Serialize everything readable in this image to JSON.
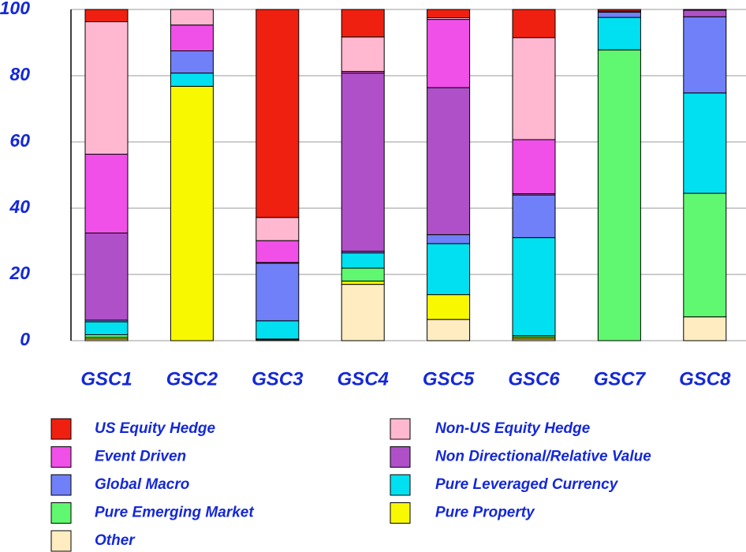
{
  "chart_data": {
    "type": "stacked_bar",
    "categories": [
      "GSC1",
      "GSC2",
      "GSC3",
      "GSC4",
      "GSC5",
      "GSC6",
      "GSC7",
      "GSC8"
    ],
    "series": [
      {
        "name": "US Equity Hedge",
        "color": "#f02010",
        "values": [
          3.7,
          0,
          62.8,
          8.3,
          2.5,
          8.5,
          0.5,
          0.2
        ]
      },
      {
        "name": "Non-US Equity Hedge",
        "color": "#ffb8d0",
        "values": [
          40,
          4.7,
          7,
          10.4,
          0.5,
          30.8,
          0.3,
          0
        ]
      },
      {
        "name": "Event Driven",
        "color": "#f050e8",
        "values": [
          23.8,
          7.8,
          6.6,
          0.5,
          20.6,
          16.3,
          0,
          0
        ]
      },
      {
        "name": "Non Directional/Relative Value",
        "color": "#b050c8",
        "values": [
          26.3,
          0,
          0.2,
          53.8,
          44.4,
          0.4,
          0,
          2
        ]
      },
      {
        "name": "Global Macro",
        "color": "#7080f8",
        "values": [
          0.5,
          6.7,
          17.4,
          0.5,
          2.7,
          12.9,
          1.6,
          23
        ]
      },
      {
        "name": "Pure Leveraged Currency",
        "color": "#00e0f0",
        "values": [
          3.9,
          4,
          5.5,
          4.6,
          15.4,
          29.6,
          9.8,
          30.3
        ]
      },
      {
        "name": "Pure Emerging Market",
        "color": "#60f870",
        "values": [
          0.8,
          0,
          0,
          3.9,
          0,
          0.5,
          87.8,
          37.3
        ]
      },
      {
        "name": "Pure Property",
        "color": "#f8f800",
        "values": [
          0.5,
          76.8,
          0.2,
          1,
          7.5,
          0.5,
          0,
          0
        ]
      },
      {
        "name": "Other",
        "color": "#ffecc0",
        "values": [
          0.5,
          0,
          0.3,
          17,
          6.4,
          0.5,
          0,
          7.2
        ]
      }
    ],
    "ylim": [
      0,
      100
    ],
    "yticks": [
      0,
      20,
      40,
      60,
      80,
      100
    ],
    "grid": true
  }
}
